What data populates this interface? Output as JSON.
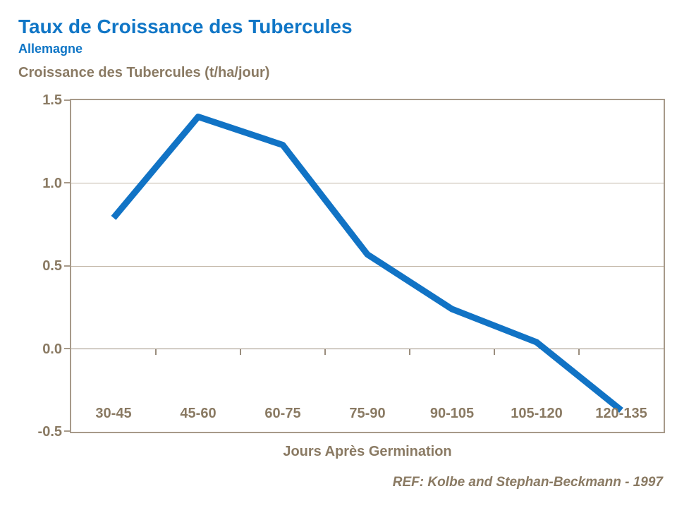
{
  "header": {
    "title": "Taux de Croissance des Tubercules",
    "subtitle": "Allemagne"
  },
  "chart_data": {
    "type": "line",
    "title": "Taux de Croissance des Tubercules",
    "subtitle": "Allemagne",
    "y_axis_title": "Croissance des Tubercules (t/ha/jour)",
    "x_axis_title": "Jours Après Germination",
    "categories": [
      "30-45",
      "45-60",
      "60-75",
      "75-90",
      "90-105",
      "105-120",
      "120-135"
    ],
    "series": [
      {
        "name": "Croissance des Tubercules (t/ha/jour)",
        "values": [
          0.79,
          1.4,
          1.23,
          0.57,
          0.24,
          0.04,
          -0.37
        ]
      }
    ],
    "ylim": [
      -0.5,
      1.5
    ],
    "yticks": [
      1.5,
      1.0,
      0.5,
      0.0,
      -0.5
    ],
    "ytick_labels": [
      "1.5",
      "1.0",
      "0.5",
      "0.0",
      "-0.5"
    ],
    "grid": true,
    "legend_position": "none",
    "line_color": "#1173C5"
  },
  "footer": {
    "reference": "REF: Kolbe and Stephan-Beckmann - 1997"
  },
  "colors": {
    "accent_blue": "#1076C6",
    "text_brown": "#8A7A63",
    "grid_tan": "#C2B6A6",
    "axis_border_tan": "#A79A8A",
    "zero_line_brown": "#9A8D7D"
  }
}
